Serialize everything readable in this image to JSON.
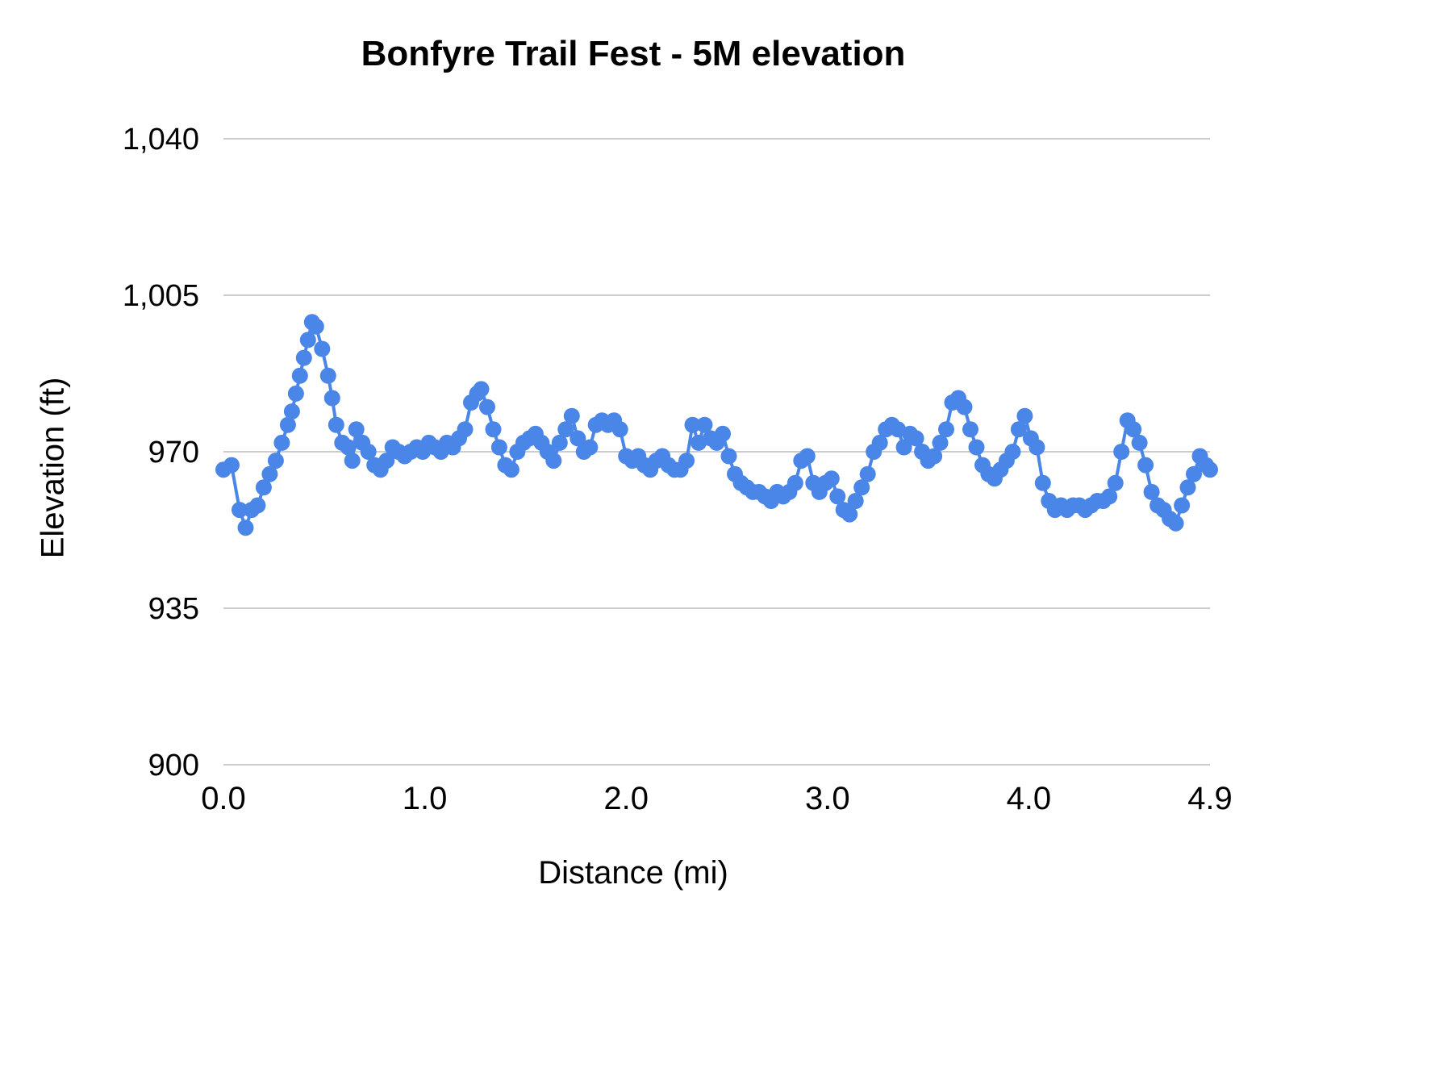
{
  "colors": {
    "series": "#4a86e8",
    "grid": "#cccccc",
    "text": "#000000",
    "background": "#ffffff"
  },
  "chart_data": {
    "type": "line",
    "title": "Bonfyre Trail Fest - 5M elevation",
    "xlabel": "Distance (mi)",
    "ylabel": "Elevation (ft)",
    "xlim": [
      0,
      4.9
    ],
    "ylim": [
      900,
      1040
    ],
    "grid": "horizontal",
    "legend": "none",
    "marker": "circle",
    "x_ticks": [
      {
        "value": 0,
        "label": "0.0"
      },
      {
        "value": 1,
        "label": "1.0"
      },
      {
        "value": 2,
        "label": "2.0"
      },
      {
        "value": 3,
        "label": "3.0"
      },
      {
        "value": 4,
        "label": "4.0"
      },
      {
        "value": 4.9,
        "label": "4.9"
      }
    ],
    "y_ticks": [
      {
        "value": 900,
        "label": "900"
      },
      {
        "value": 935,
        "label": "935"
      },
      {
        "value": 970,
        "label": "970"
      },
      {
        "value": 1005,
        "label": "1,005"
      },
      {
        "value": 1040,
        "label": "1,040"
      }
    ],
    "series": [
      {
        "name": "elevation",
        "color": "#4a86e8",
        "points": [
          [
            0.0,
            966
          ],
          [
            0.04,
            967
          ],
          [
            0.08,
            957
          ],
          [
            0.11,
            953
          ],
          [
            0.14,
            957
          ],
          [
            0.17,
            958
          ],
          [
            0.2,
            962
          ],
          [
            0.23,
            965
          ],
          [
            0.26,
            968
          ],
          [
            0.29,
            972
          ],
          [
            0.32,
            976
          ],
          [
            0.34,
            979
          ],
          [
            0.36,
            983
          ],
          [
            0.38,
            987
          ],
          [
            0.4,
            991
          ],
          [
            0.42,
            995
          ],
          [
            0.44,
            999
          ],
          [
            0.46,
            998
          ],
          [
            0.49,
            993
          ],
          [
            0.52,
            987
          ],
          [
            0.54,
            982
          ],
          [
            0.56,
            976
          ],
          [
            0.59,
            972
          ],
          [
            0.62,
            971
          ],
          [
            0.64,
            968
          ],
          [
            0.66,
            975
          ],
          [
            0.69,
            972
          ],
          [
            0.72,
            970
          ],
          [
            0.75,
            967
          ],
          [
            0.78,
            966
          ],
          [
            0.81,
            968
          ],
          [
            0.84,
            971
          ],
          [
            0.87,
            970
          ],
          [
            0.9,
            969
          ],
          [
            0.93,
            970
          ],
          [
            0.96,
            971
          ],
          [
            0.99,
            970
          ],
          [
            1.02,
            972
          ],
          [
            1.05,
            971
          ],
          [
            1.08,
            970
          ],
          [
            1.11,
            972
          ],
          [
            1.14,
            971
          ],
          [
            1.17,
            973
          ],
          [
            1.2,
            975
          ],
          [
            1.23,
            981
          ],
          [
            1.26,
            983
          ],
          [
            1.28,
            984
          ],
          [
            1.31,
            980
          ],
          [
            1.34,
            975
          ],
          [
            1.37,
            971
          ],
          [
            1.4,
            967
          ],
          [
            1.43,
            966
          ],
          [
            1.46,
            970
          ],
          [
            1.49,
            972
          ],
          [
            1.52,
            973
          ],
          [
            1.55,
            974
          ],
          [
            1.58,
            972
          ],
          [
            1.61,
            970
          ],
          [
            1.64,
            968
          ],
          [
            1.67,
            972
          ],
          [
            1.7,
            975
          ],
          [
            1.73,
            978
          ],
          [
            1.76,
            973
          ],
          [
            1.79,
            970
          ],
          [
            1.82,
            971
          ],
          [
            1.85,
            976
          ],
          [
            1.88,
            977
          ],
          [
            1.91,
            976
          ],
          [
            1.94,
            977
          ],
          [
            1.97,
            975
          ],
          [
            2.0,
            969
          ],
          [
            2.03,
            968
          ],
          [
            2.06,
            969
          ],
          [
            2.09,
            967
          ],
          [
            2.12,
            966
          ],
          [
            2.15,
            968
          ],
          [
            2.18,
            969
          ],
          [
            2.21,
            967
          ],
          [
            2.24,
            966
          ],
          [
            2.27,
            966
          ],
          [
            2.3,
            968
          ],
          [
            2.33,
            976
          ],
          [
            2.36,
            972
          ],
          [
            2.39,
            976
          ],
          [
            2.42,
            973
          ],
          [
            2.45,
            972
          ],
          [
            2.48,
            974
          ],
          [
            2.51,
            969
          ],
          [
            2.54,
            965
          ],
          [
            2.57,
            963
          ],
          [
            2.6,
            962
          ],
          [
            2.63,
            961
          ],
          [
            2.66,
            961
          ],
          [
            2.69,
            960
          ],
          [
            2.72,
            959
          ],
          [
            2.75,
            961
          ],
          [
            2.78,
            960
          ],
          [
            2.81,
            961
          ],
          [
            2.84,
            963
          ],
          [
            2.87,
            968
          ],
          [
            2.9,
            969
          ],
          [
            2.93,
            963
          ],
          [
            2.96,
            961
          ],
          [
            2.99,
            963
          ],
          [
            3.02,
            964
          ],
          [
            3.05,
            960
          ],
          [
            3.08,
            957
          ],
          [
            3.11,
            956
          ],
          [
            3.14,
            959
          ],
          [
            3.17,
            962
          ],
          [
            3.2,
            965
          ],
          [
            3.23,
            970
          ],
          [
            3.26,
            972
          ],
          [
            3.29,
            975
          ],
          [
            3.32,
            976
          ],
          [
            3.35,
            975
          ],
          [
            3.38,
            971
          ],
          [
            3.41,
            974
          ],
          [
            3.44,
            973
          ],
          [
            3.47,
            970
          ],
          [
            3.5,
            968
          ],
          [
            3.53,
            969
          ],
          [
            3.56,
            972
          ],
          [
            3.59,
            975
          ],
          [
            3.62,
            981
          ],
          [
            3.65,
            982
          ],
          [
            3.68,
            980
          ],
          [
            3.71,
            975
          ],
          [
            3.74,
            971
          ],
          [
            3.77,
            967
          ],
          [
            3.8,
            965
          ],
          [
            3.83,
            964
          ],
          [
            3.86,
            966
          ],
          [
            3.89,
            968
          ],
          [
            3.92,
            970
          ],
          [
            3.95,
            975
          ],
          [
            3.98,
            978
          ],
          [
            4.01,
            973
          ],
          [
            4.04,
            971
          ],
          [
            4.07,
            963
          ],
          [
            4.1,
            959
          ],
          [
            4.13,
            957
          ],
          [
            4.16,
            958
          ],
          [
            4.19,
            957
          ],
          [
            4.22,
            958
          ],
          [
            4.25,
            958
          ],
          [
            4.28,
            957
          ],
          [
            4.31,
            958
          ],
          [
            4.34,
            959
          ],
          [
            4.37,
            959
          ],
          [
            4.4,
            960
          ],
          [
            4.43,
            963
          ],
          [
            4.46,
            970
          ],
          [
            4.49,
            977
          ],
          [
            4.52,
            975
          ],
          [
            4.55,
            972
          ],
          [
            4.58,
            967
          ],
          [
            4.61,
            961
          ],
          [
            4.64,
            958
          ],
          [
            4.67,
            957
          ],
          [
            4.7,
            955
          ],
          [
            4.73,
            954
          ],
          [
            4.76,
            958
          ],
          [
            4.79,
            962
          ],
          [
            4.82,
            965
          ],
          [
            4.85,
            969
          ],
          [
            4.88,
            967
          ],
          [
            4.9,
            966
          ]
        ]
      }
    ]
  }
}
